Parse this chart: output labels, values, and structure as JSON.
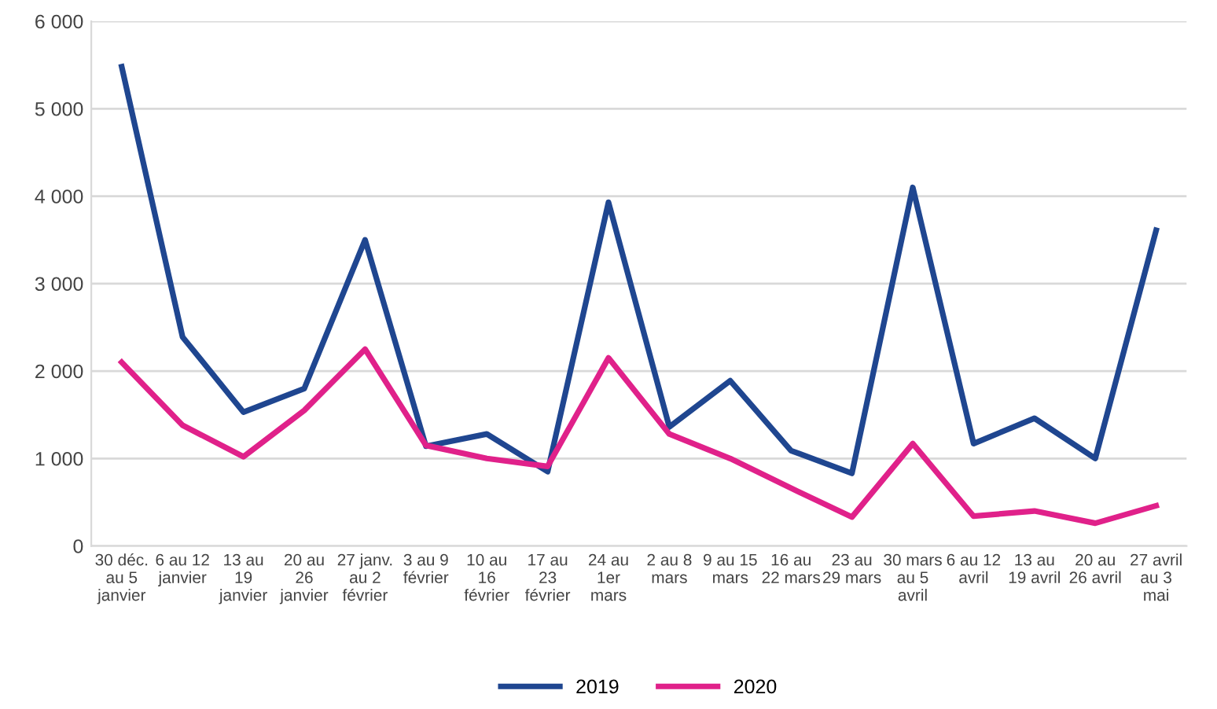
{
  "chart_data": {
    "type": "line",
    "categories": [
      "30 déc.\nau 5\njanvier",
      "6 au 12\njanvier",
      "13 au\n19\njanvier",
      "20 au\n26\njanvier",
      "27 janv.\nau 2\nfévrier",
      "3 au 9\nfévrier",
      "10 au\n16\nfévrier",
      "17 au\n23\nfévrier",
      "24 au\n1er\nmars",
      "2 au 8\nmars",
      "9 au 15\nmars",
      "16 au\n22 mars",
      "23 au\n29 mars",
      "30 mars\nau 5\navril",
      "6 au 12\navril",
      "13 au\n19 avril",
      "20 au\n26 avril",
      "27 avril\nau 3\nmai"
    ],
    "series": [
      {
        "name": "2019",
        "color": "#1f4690",
        "values": [
          5480,
          2390,
          1530,
          1800,
          3500,
          1140,
          1280,
          850,
          3930,
          1360,
          1890,
          1090,
          830,
          4100,
          1170,
          1460,
          1000,
          3610
        ]
      },
      {
        "name": "2020",
        "color": "#e0218a",
        "values": [
          2100,
          1380,
          1020,
          1550,
          2250,
          1150,
          1000,
          910,
          2150,
          1280,
          1000,
          660,
          330,
          1170,
          340,
          400,
          260,
          460
        ]
      }
    ],
    "ylim": [
      0,
      6000
    ],
    "yticks": [
      0,
      {
        "value": 1000,
        "label": "1 000"
      },
      {
        "value": 2000,
        "label": "2 000"
      },
      {
        "value": 3000,
        "label": "3 000"
      },
      {
        "value": 4000,
        "label": "4 000"
      },
      {
        "value": 5000,
        "label": "5 000"
      },
      {
        "value": 6000,
        "label": "6 000"
      }
    ],
    "grid": "y",
    "legend": "bottom",
    "marker": "none",
    "line_style": "solid"
  }
}
